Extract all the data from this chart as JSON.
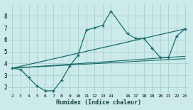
{
  "xlabel": "Humidex (Indice chaleur)",
  "background_color": "#cceaea",
  "grid_color": "#aad4d4",
  "line_color": "#1a6b6b",
  "x_ticks": [
    2,
    3,
    4,
    5,
    6,
    7,
    8,
    9,
    10,
    11,
    12,
    13,
    14,
    16,
    17,
    18,
    19,
    20,
    21,
    22,
    23
  ],
  "ylim": [
    1.5,
    9.0
  ],
  "xlim": [
    1.5,
    23.5
  ],
  "yticks": [
    2,
    3,
    4,
    5,
    6,
    7,
    8
  ],
  "series1_x": [
    2,
    3,
    4,
    5,
    6,
    7,
    8,
    9,
    10,
    11,
    12,
    13,
    14,
    16,
    17,
    18,
    19,
    20,
    21,
    22,
    23
  ],
  "series1_y": [
    3.6,
    3.5,
    2.8,
    2.1,
    1.7,
    1.7,
    2.6,
    3.8,
    4.7,
    6.8,
    7.0,
    7.2,
    8.4,
    6.5,
    6.1,
    6.1,
    5.3,
    4.5,
    4.5,
    6.3,
    6.9
  ],
  "series2_x": [
    2,
    23
  ],
  "series2_y": [
    3.6,
    6.9
  ],
  "series3_x": [
    2,
    23
  ],
  "series3_y": [
    3.6,
    4.6
  ],
  "series4_x": [
    2,
    23
  ],
  "series4_y": [
    3.6,
    4.4
  ]
}
